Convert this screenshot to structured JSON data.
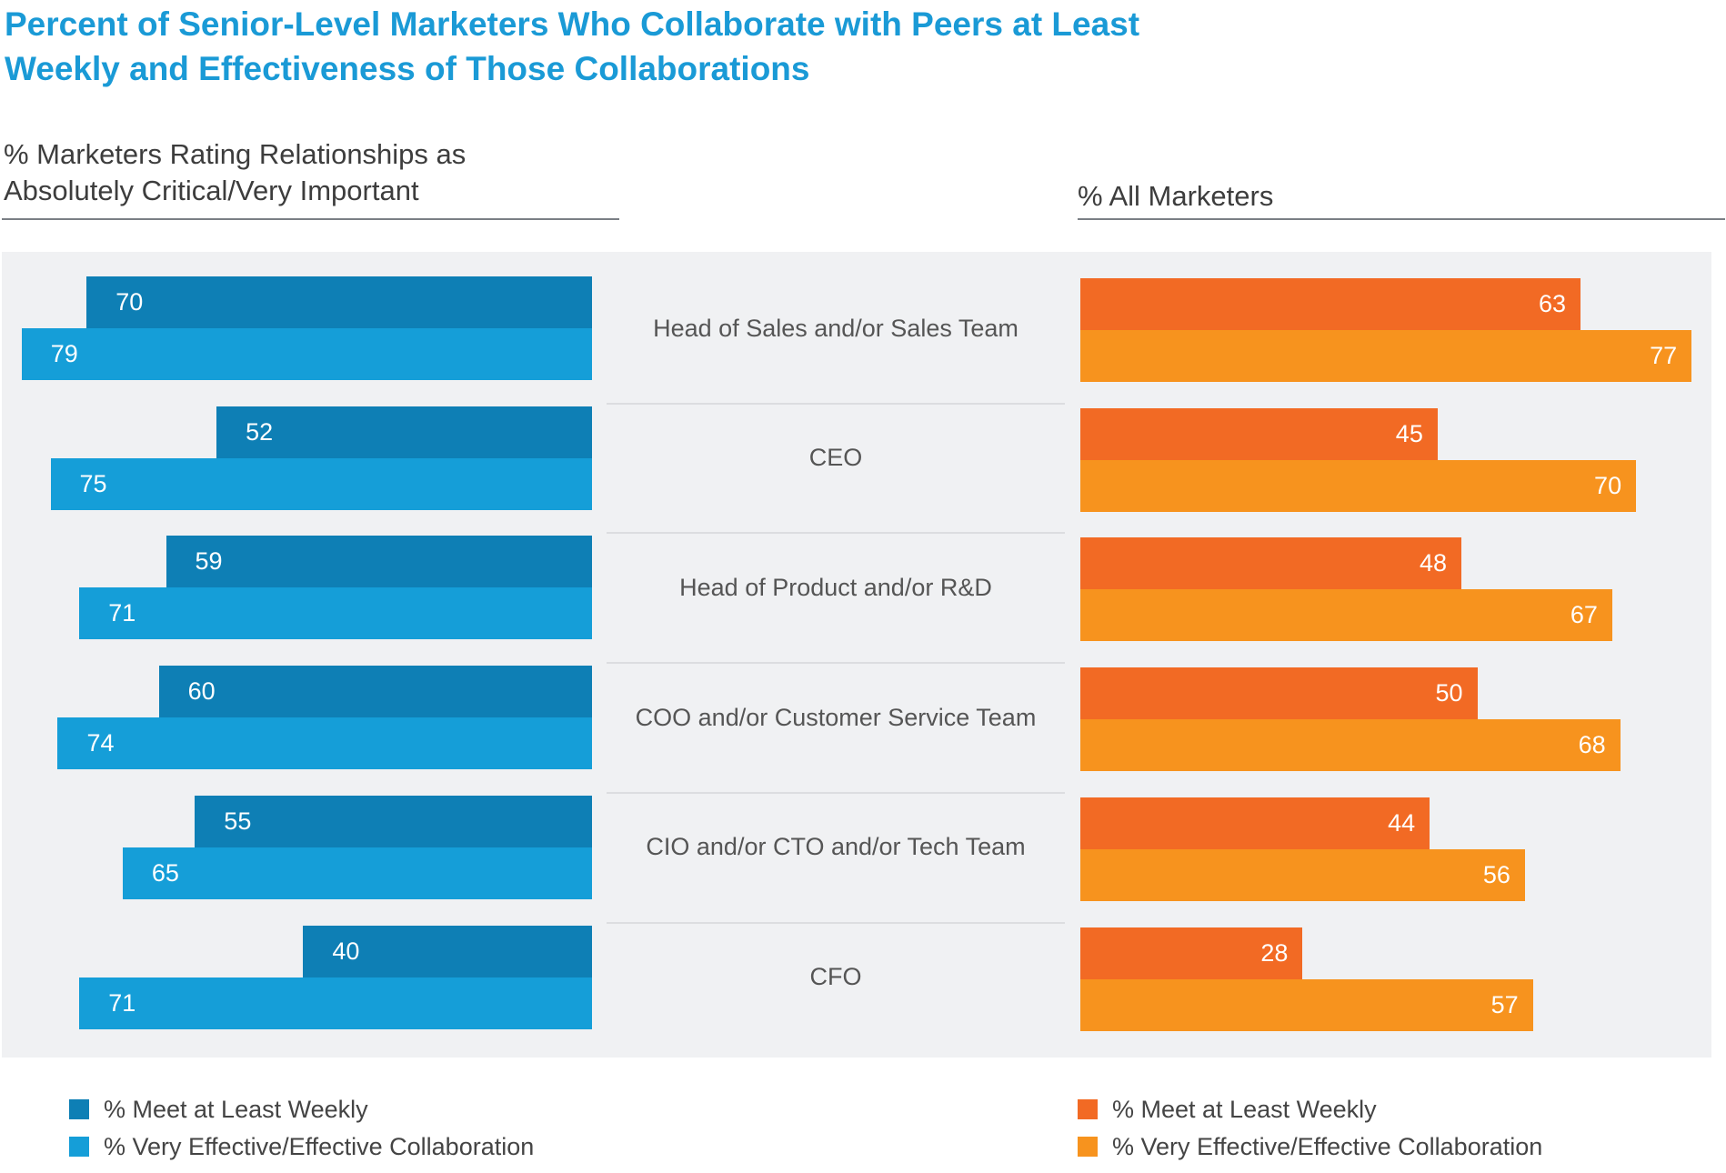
{
  "chart_data": {
    "type": "bar",
    "title": "Percent of Senior-Level Marketers Who Collaborate with Peers at Least Weekly and Effectiveness of Those Collaborations",
    "categories": [
      "Head of Sales and/or Sales Team",
      "CEO",
      "Head of Product and/or R&D",
      "COO and/or Customer Service Team",
      "CIO and/or CTO and/or Tech Team",
      "CFO"
    ],
    "left_panel": {
      "label": "% Marketers Rating Relationships as Absolutely Critical/Very Important",
      "series": [
        {
          "name": "% Meet at Least Weekly",
          "color": "#0e7fb5",
          "values": [
            70,
            52,
            59,
            60,
            55,
            40
          ]
        },
        {
          "name": "% Very Effective/Effective Collaboration",
          "color": "#159ed8",
          "values": [
            79,
            75,
            71,
            74,
            65,
            71
          ]
        }
      ]
    },
    "right_panel": {
      "label": "% All Marketers",
      "series": [
        {
          "name": "% Meet at Least Weekly",
          "color": "#f26a24",
          "values": [
            63,
            45,
            48,
            50,
            44,
            28
          ]
        },
        {
          "name": "% Very Effective/Effective Collaboration",
          "color": "#f7931e",
          "values": [
            77,
            70,
            67,
            68,
            56,
            57
          ]
        }
      ]
    }
  },
  "title_line1": "Percent of Senior-Level Marketers Who Collaborate with Peers at Least",
  "title_line2": "Weekly and Effectiveness of Those Collaborations",
  "left_sub1": "% Marketers Rating Relationships as",
  "left_sub2": "Absolutely Critical/Very Important",
  "right_sub": "% All Marketers"
}
